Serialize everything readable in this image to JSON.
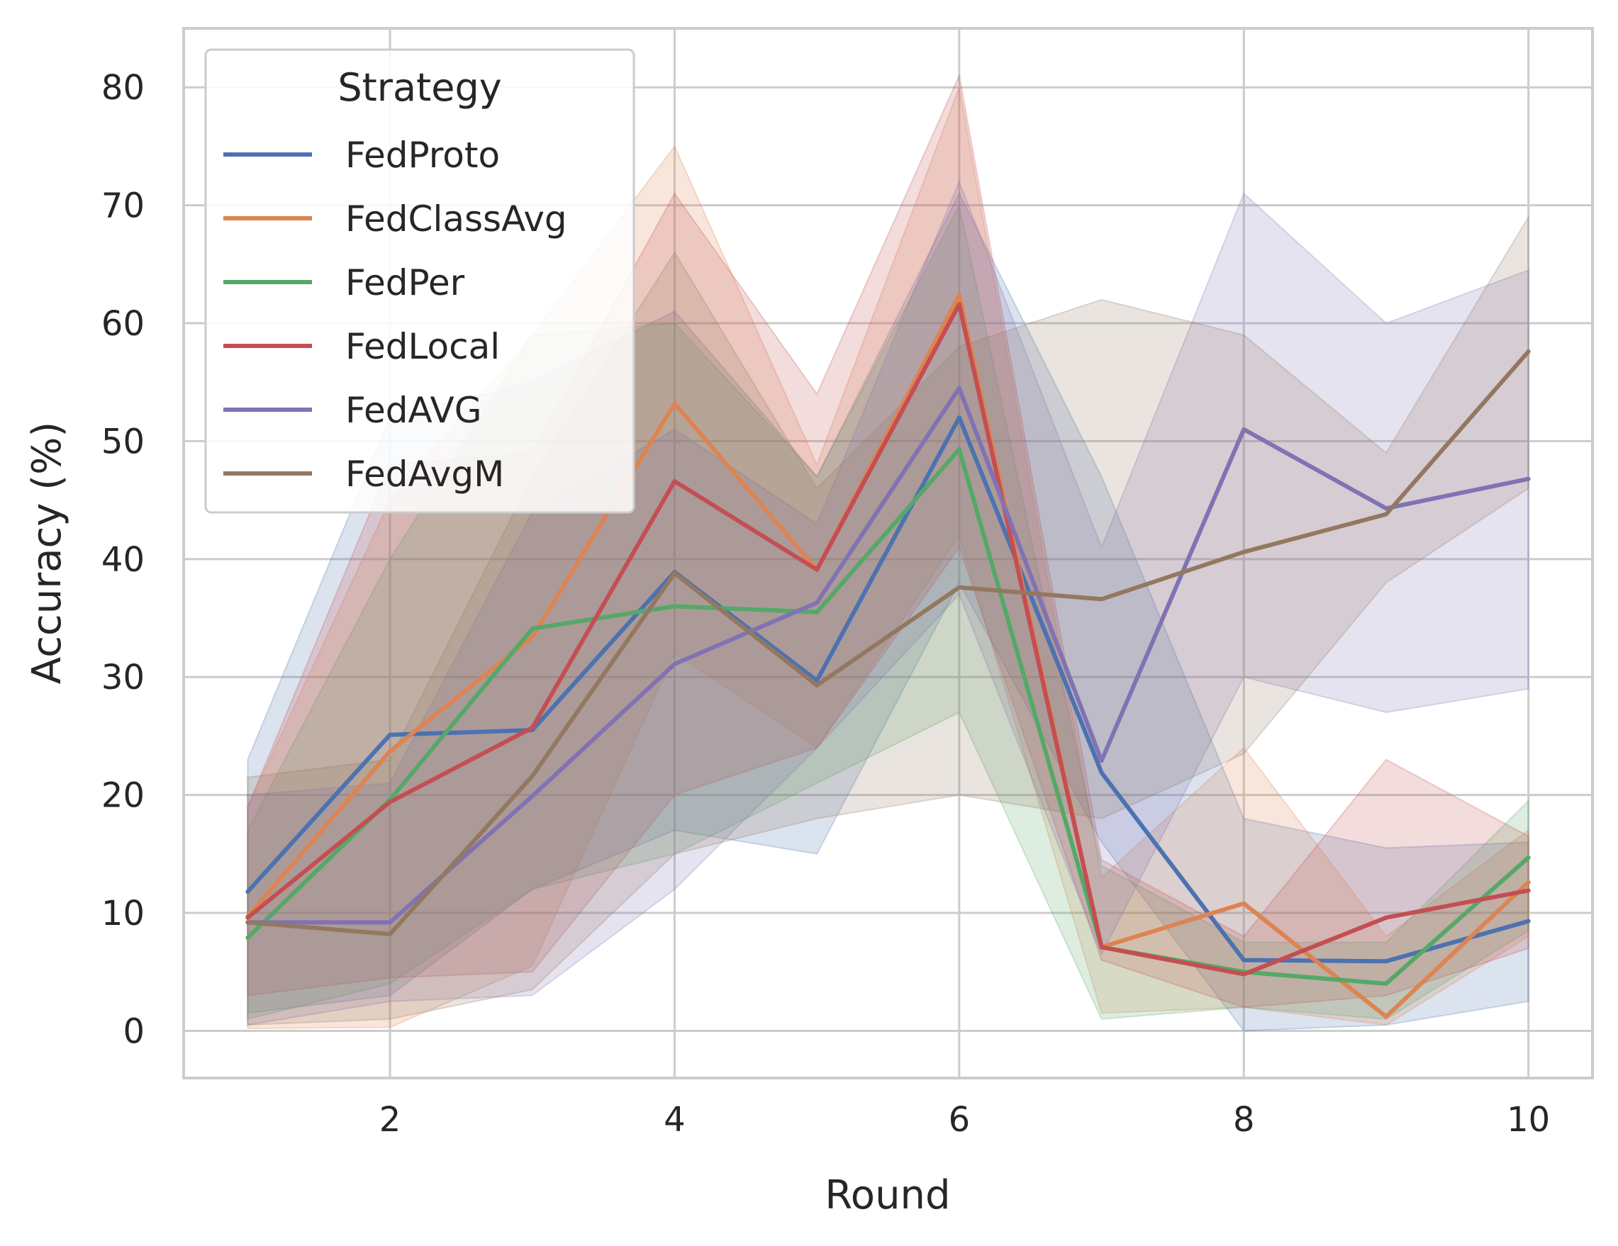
{
  "chart_data": {
    "type": "line",
    "xlabel": "Round",
    "ylabel": "Accuracy (%)",
    "xlim": [
      0.55,
      10.45
    ],
    "ylim": [
      -4,
      85
    ],
    "xticks": [
      2,
      4,
      6,
      8,
      10
    ],
    "yticks": [
      0,
      10,
      20,
      30,
      40,
      50,
      60,
      70,
      80
    ],
    "grid": true,
    "legend": {
      "title": "Strategy",
      "placement": "top-left"
    },
    "x": [
      1,
      2,
      3,
      4,
      5,
      6,
      7,
      8,
      9,
      10
    ],
    "series": [
      {
        "name": "FedProto",
        "color": "#4c72b0",
        "values": [
          11.8,
          25.1,
          25.5,
          38.9,
          29.7,
          52.0,
          21.9,
          6.0,
          5.9,
          9.3
        ],
        "lower": [
          1.5,
          3.0,
          12.0,
          17.0,
          15.0,
          38.0,
          16.0,
          0.0,
          0.5,
          2.5
        ],
        "upper": [
          23.0,
          52.0,
          55.0,
          61.0,
          47.0,
          71.0,
          47.0,
          18.0,
          15.5,
          16.0
        ]
      },
      {
        "name": "FedClassAvg",
        "color": "#dd8452",
        "values": [
          9.7,
          23.7,
          33.4,
          53.2,
          39.1,
          62.4,
          7.1,
          10.8,
          1.2,
          12.6
        ],
        "lower": [
          0.2,
          0.3,
          5.5,
          32.0,
          24.0,
          42.0,
          1.5,
          2.0,
          0.5,
          8.0
        ],
        "upper": [
          19.0,
          45.0,
          59.0,
          75.0,
          48.0,
          80.0,
          13.0,
          24.0,
          8.0,
          17.0
        ]
      },
      {
        "name": "FedPer",
        "color": "#55a868",
        "values": [
          7.9,
          19.6,
          34.1,
          36.0,
          35.5,
          49.3,
          7.1,
          5.0,
          4.0,
          14.7
        ],
        "lower": [
          1.0,
          4.0,
          12.0,
          15.0,
          21.0,
          27.0,
          1.0,
          2.0,
          1.0,
          8.5
        ],
        "upper": [
          17.0,
          40.0,
          59.0,
          60.0,
          47.0,
          70.0,
          14.0,
          7.5,
          7.5,
          19.5
        ]
      },
      {
        "name": "FedLocal",
        "color": "#c44e52",
        "values": [
          9.6,
          19.4,
          25.7,
          46.6,
          39.1,
          61.6,
          7.1,
          4.8,
          9.6,
          11.9
        ],
        "lower": [
          3.0,
          4.5,
          5.0,
          20.0,
          24.0,
          41.0,
          6.0,
          2.0,
          3.0,
          7.0
        ],
        "upper": [
          19.0,
          48.0,
          49.0,
          71.0,
          54.0,
          81.0,
          14.5,
          8.0,
          23.0,
          16.5
        ]
      },
      {
        "name": "FedAVG",
        "color": "#8172b3",
        "values": [
          9.2,
          9.2,
          19.9,
          31.1,
          36.3,
          54.5,
          22.9,
          51.0,
          44.3,
          46.8
        ],
        "lower": [
          0.5,
          2.5,
          3.0,
          12.0,
          24.0,
          37.0,
          6.5,
          30.0,
          27.0,
          29.0
        ],
        "upper": [
          20.0,
          21.0,
          44.0,
          51.0,
          43.0,
          72.0,
          41.0,
          71.0,
          60.0,
          64.5
        ]
      },
      {
        "name": "FedAvgM",
        "color": "#937860",
        "values": [
          9.2,
          8.2,
          21.6,
          38.8,
          29.3,
          37.6,
          36.6,
          40.6,
          43.8,
          57.6
        ],
        "lower": [
          0.5,
          1.0,
          3.5,
          15.0,
          18.0,
          20.0,
          18.0,
          23.5,
          38.0,
          46.0
        ],
        "upper": [
          21.5,
          23.0,
          47.0,
          66.0,
          46.0,
          58.0,
          62.0,
          59.0,
          49.0,
          69.0
        ]
      }
    ]
  }
}
